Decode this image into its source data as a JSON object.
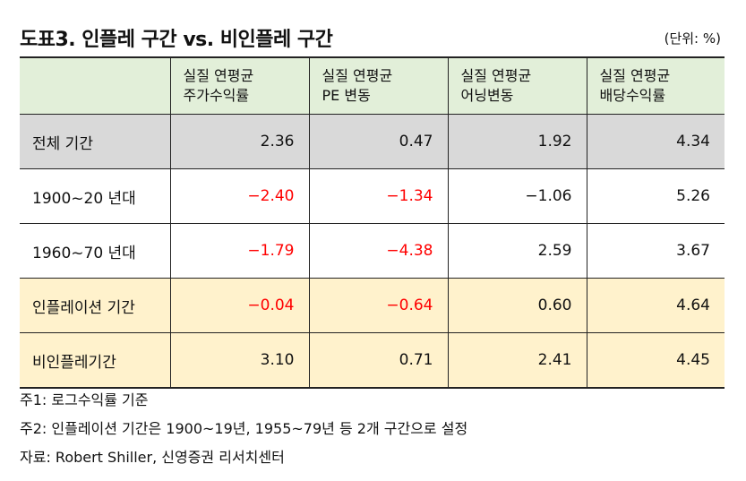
{
  "title": "도표3. 인플레 구간 vs. 비인플레 구간",
  "unit": "(단위: %)",
  "columns": [
    {
      "line1": "",
      "line2": ""
    },
    {
      "line1": "실질 연평균",
      "line2": "주가수익률"
    },
    {
      "line1": "실질 연평균",
      "line2": "PE 변동"
    },
    {
      "line1": "실질 연평균",
      "line2": "어닝변동"
    },
    {
      "line1": "실질 연평균",
      "line2": "배당수익률"
    }
  ],
  "rows": [
    {
      "label": "전체 기간",
      "values": [
        "2.36",
        "0.47",
        "1.92",
        "4.34"
      ]
    },
    {
      "label": "1900~20 년대",
      "values": [
        "−2.40",
        "−1.34",
        "−1.06",
        "5.26"
      ]
    },
    {
      "label": "1960~70 년대",
      "values": [
        "−1.79",
        "−4.38",
        "2.59",
        "3.67"
      ]
    },
    {
      "label": "인플레이션 기간",
      "values": [
        "−0.04",
        "−0.64",
        "0.60",
        "4.64"
      ]
    },
    {
      "label": "비인플레기간",
      "values": [
        "3.10",
        "0.71",
        "2.41",
        "4.45"
      ]
    }
  ],
  "colors": {
    "header_bg": "#e2efd9",
    "gray_row": "#d9d9d9",
    "yellow_row": "#fff2cc",
    "negative": "#ff0000"
  },
  "notes": [
    "주1: 로그수익률 기준",
    "주2: 인플레이션 기간은 1900~19년, 1955~79년 등 2개 구간으로 설정",
    "자료: Robert Shiller, 신영증권 리서치센터"
  ]
}
